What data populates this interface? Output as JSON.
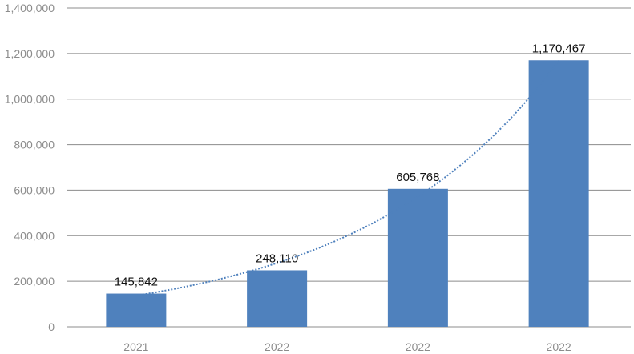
{
  "chart_data": {
    "type": "bar",
    "title": "",
    "xlabel": "",
    "ylabel": "",
    "categories": [
      "2021",
      "2022",
      "2022",
      "2022"
    ],
    "values": [
      145842,
      248110,
      605768,
      1170467
    ],
    "data_labels": [
      "145,842",
      "248,110",
      "605,768",
      "1,170,467"
    ],
    "ylim": [
      0,
      1400000
    ],
    "y_ticks": [
      0,
      200000,
      400000,
      600000,
      800000,
      1000000,
      1200000,
      1400000
    ],
    "y_tick_labels": [
      "0",
      "200,000",
      "400,000",
      "600,000",
      "800,000",
      "1,000,000",
      "1,200,000",
      "1,400,000"
    ],
    "grid": true,
    "trendline": {
      "type": "exponential",
      "style": "dotted"
    },
    "bar_color": "#4f81bd",
    "grid_color": "#8c8c8c"
  }
}
